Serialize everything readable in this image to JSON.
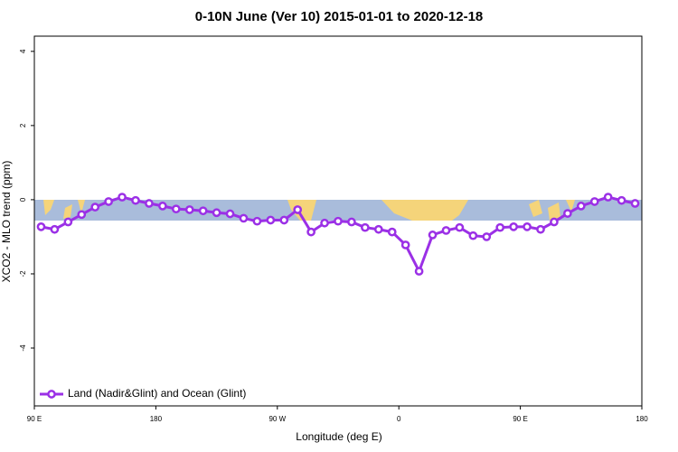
{
  "chart_data": {
    "type": "line",
    "title": "0-10N June (Ver 10)   2015-01-01 to 2020-12-18",
    "x_label": "Longitude (deg E)",
    "y_label": "XCO2 - MLO trend (ppm)",
    "xlim": [
      90,
      540
    ],
    "xticks": [
      {
        "value": 90,
        "label": "90 E"
      },
      {
        "value": 180,
        "label": "180"
      },
      {
        "value": 270,
        "label": "90 W"
      },
      {
        "value": 360,
        "label": "0"
      },
      {
        "value": 450,
        "label": "90 E"
      },
      {
        "value": 540,
        "label": "180"
      }
    ],
    "ylim": [
      -5.56,
      4.41
    ],
    "yticks": [
      -4,
      -2,
      0,
      2,
      4
    ],
    "legend": "bottom-left",
    "x": [
      95,
      105,
      115,
      125,
      135,
      145,
      155,
      165,
      175,
      185,
      195,
      205,
      215,
      225,
      235,
      245,
      255,
      265,
      275,
      285,
      295,
      305,
      315,
      325,
      335,
      345,
      355,
      365,
      375,
      385,
      395,
      405,
      415,
      425,
      435,
      445,
      455,
      465,
      475,
      485,
      495,
      505,
      515,
      525,
      535
    ],
    "series": [
      {
        "name": "Land (Nadir&Glint) and Ocean (Glint)",
        "color": "#9b30e6",
        "values": [
          -0.73,
          -0.8,
          -0.6,
          -0.4,
          -0.2,
          -0.05,
          0.07,
          -0.02,
          -0.1,
          -0.17,
          -0.25,
          -0.27,
          -0.3,
          -0.35,
          -0.38,
          -0.5,
          -0.58,
          -0.55,
          -0.55,
          -0.27,
          -0.87,
          -0.63,
          -0.58,
          -0.6,
          -0.75,
          -0.8,
          -0.87,
          -1.22,
          -1.93,
          -0.95,
          -0.83,
          -0.75,
          -0.97,
          -1.0,
          -0.75,
          -0.73,
          -0.73,
          -0.8,
          -0.6,
          -0.37,
          -0.17,
          -0.05,
          0.07,
          -0.02,
          -0.1
        ]
      }
    ]
  }
}
